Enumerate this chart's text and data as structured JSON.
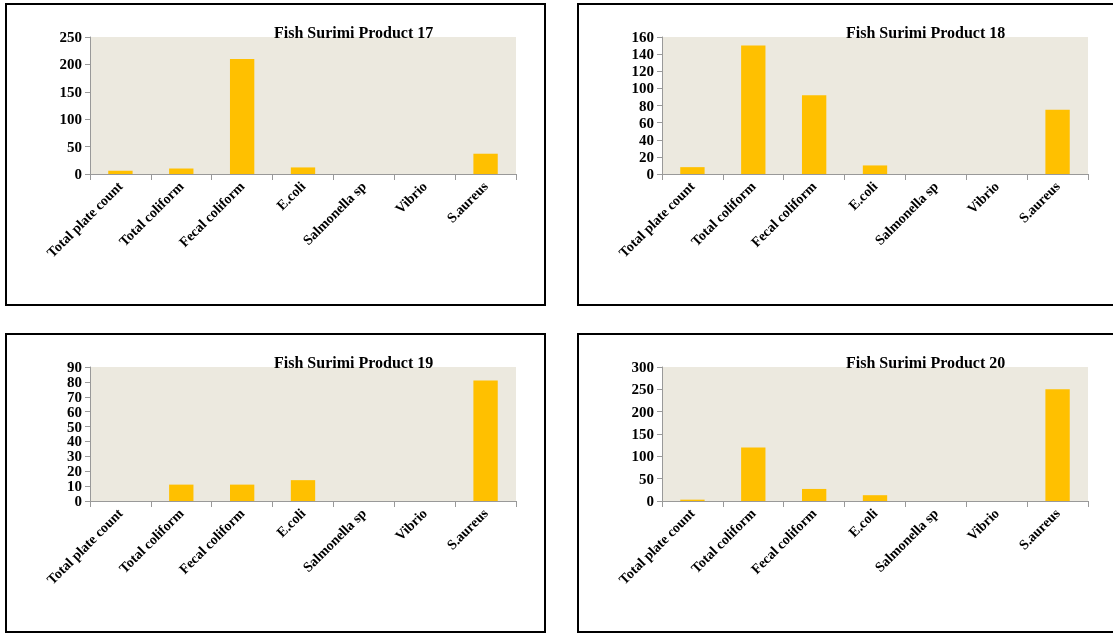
{
  "chart_data": [
    {
      "type": "bar",
      "title": "Fish Surimi Product 17",
      "categories": [
        "Total plate count",
        "Total coliform",
        "Fecal coliform",
        "E.coli",
        "Salmonella sp",
        "Vibrio",
        "S.aureus"
      ],
      "values": [
        6,
        10,
        210,
        12,
        0,
        0,
        37
      ],
      "color": "#ffc000",
      "ylim": [
        0,
        250
      ],
      "yticks": [
        0,
        50,
        100,
        150,
        200,
        250
      ],
      "grid": false
    },
    {
      "type": "bar",
      "title": "Fish Surimi Product 18",
      "categories": [
        "Total plate count",
        "Total coliform",
        "Fecal coliform",
        "E.coli",
        "Salmonella sp",
        "Vibrio",
        "S.aureus"
      ],
      "values": [
        8,
        150,
        92,
        10,
        0,
        0,
        75
      ],
      "color": "#ffc000",
      "ylim": [
        0,
        160
      ],
      "yticks": [
        0,
        20,
        40,
        60,
        80,
        100,
        120,
        140,
        160
      ],
      "grid": false
    },
    {
      "type": "bar",
      "title": "Fish Surimi Product 19",
      "categories": [
        "Total plate count",
        "Total coliform",
        "Fecal coliform",
        "E.coli",
        "Salmonella sp",
        "Vibrio",
        "S.aureus"
      ],
      "values": [
        0,
        11,
        11,
        14,
        0,
        0,
        81
      ],
      "color": "#ffc000",
      "ylim": [
        0,
        90
      ],
      "yticks": [
        0,
        10,
        20,
        30,
        40,
        50,
        60,
        70,
        80,
        90
      ],
      "grid": false
    },
    {
      "type": "bar",
      "title": "Fish Surimi Product 20",
      "categories": [
        "Total plate count",
        "Total coliform",
        "Fecal coliform",
        "E.coli",
        "Salmonella sp",
        "Vibrio",
        "S.aureus"
      ],
      "values": [
        3,
        120,
        27,
        13,
        0,
        0,
        250
      ],
      "color": "#ffc000",
      "ylim": [
        0,
        300
      ],
      "yticks": [
        0,
        50,
        100,
        150,
        200,
        250,
        300
      ],
      "grid": false
    }
  ]
}
